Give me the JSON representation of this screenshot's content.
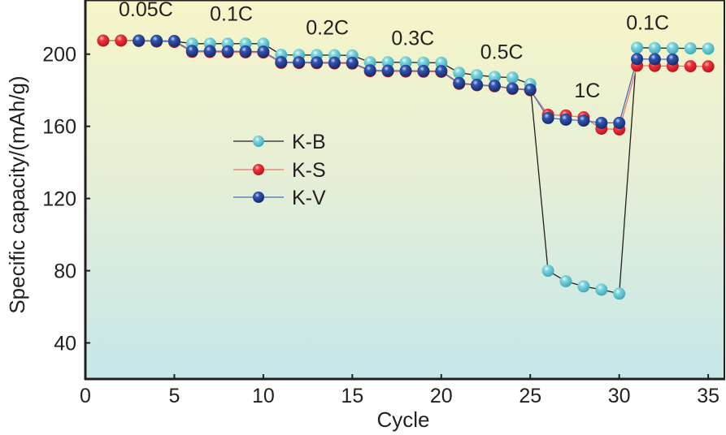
{
  "chart_data": {
    "type": "line",
    "title": "",
    "xlabel": "Cycle",
    "ylabel": "Specific capacity/(mAh/g)",
    "xlim": [
      0,
      36
    ],
    "ylim": [
      20,
      230
    ],
    "xticks": [
      0,
      5,
      10,
      15,
      20,
      25,
      30,
      35
    ],
    "yticks": [
      40,
      80,
      120,
      160,
      200
    ],
    "xtick_labels": [
      "0",
      "5",
      "10",
      "15",
      "20",
      "25",
      "30",
      "35"
    ],
    "ytick_labels": [
      "40",
      "80",
      "120",
      "160",
      "200"
    ],
    "grid": false,
    "legend_position": "center-left",
    "background": "vertical gradient, pale yellow (top) to pale cyan (bottom)",
    "series": [
      {
        "name": "K-B",
        "color": "#5fc8d2",
        "line_color": "#231f20",
        "x": [
          1,
          2,
          3,
          4,
          5,
          6,
          7,
          8,
          9,
          10,
          11,
          12,
          13,
          14,
          15,
          16,
          17,
          18,
          19,
          20,
          21,
          22,
          23,
          24,
          25,
          26,
          27,
          28,
          29,
          30,
          31,
          32,
          33,
          34,
          35
        ],
        "values": [
          207.5,
          207.5,
          207.5,
          207.3,
          207.2,
          205.8,
          205.8,
          205.8,
          205.8,
          205.8,
          199.6,
          199.5,
          199.5,
          199.4,
          199.3,
          195.5,
          195.5,
          195.4,
          195.3,
          195.2,
          189.7,
          188.3,
          187.4,
          187,
          183.4,
          80,
          74.2,
          71.3,
          69.5,
          67.3,
          203.6,
          203.4,
          203.3,
          203.2,
          203
        ]
      },
      {
        "name": "K-S",
        "color": "#e8222b",
        "line_color": "#e07a6e",
        "x": [
          1,
          2,
          3,
          4,
          5,
          6,
          7,
          8,
          9,
          10,
          11,
          12,
          13,
          14,
          15,
          16,
          17,
          18,
          19,
          20,
          21,
          22,
          23,
          24,
          25,
          26,
          27,
          28,
          29,
          30,
          31,
          32,
          33,
          34,
          35
        ],
        "values": [
          207.5,
          207.5,
          207.3,
          207,
          206.8,
          201.3,
          201.2,
          201.1,
          201,
          200.9,
          195.2,
          195.1,
          195,
          194.9,
          194.8,
          190.6,
          190.5,
          190.4,
          190.3,
          190.2,
          183.6,
          182.8,
          182.2,
          180.8,
          180,
          166.4,
          166,
          165,
          158.7,
          158.3,
          193.6,
          193.5,
          193.4,
          193.3,
          193.2
        ]
      },
      {
        "name": "K-V",
        "color": "#2a4a9e",
        "line_color": "#4a6ab8",
        "x": [
          3,
          4,
          5,
          6,
          7,
          8,
          9,
          10,
          11,
          12,
          13,
          14,
          15,
          16,
          17,
          18,
          19,
          20,
          21,
          22,
          23,
          24,
          25,
          26,
          27,
          28,
          29,
          30,
          31,
          32,
          33
        ],
        "values": [
          207.5,
          207.4,
          207.3,
          201.8,
          201.7,
          201.6,
          201.5,
          201.4,
          195.6,
          195.5,
          195.4,
          195.3,
          195.2,
          191,
          190.9,
          190.8,
          190.7,
          190.6,
          184,
          183,
          182.5,
          181,
          180.3,
          164.6,
          163.7,
          163.2,
          161.9,
          161.9,
          197.3,
          197.2,
          197.1
        ]
      }
    ],
    "annotations": [
      {
        "text": "0.05C",
        "x": 3.4,
        "y": 221
      },
      {
        "text": "0.1C",
        "x": 8.2,
        "y": 218.5
      },
      {
        "text": "0.2C",
        "x": 13.6,
        "y": 211
      },
      {
        "text": "0.3C",
        "x": 18.4,
        "y": 205
      },
      {
        "text": "0.5C",
        "x": 23.4,
        "y": 197.5
      },
      {
        "text": "1C",
        "x": 28.2,
        "y": 176
      },
      {
        "text": "0.1C",
        "x": 31.6,
        "y": 213.5
      }
    ]
  }
}
